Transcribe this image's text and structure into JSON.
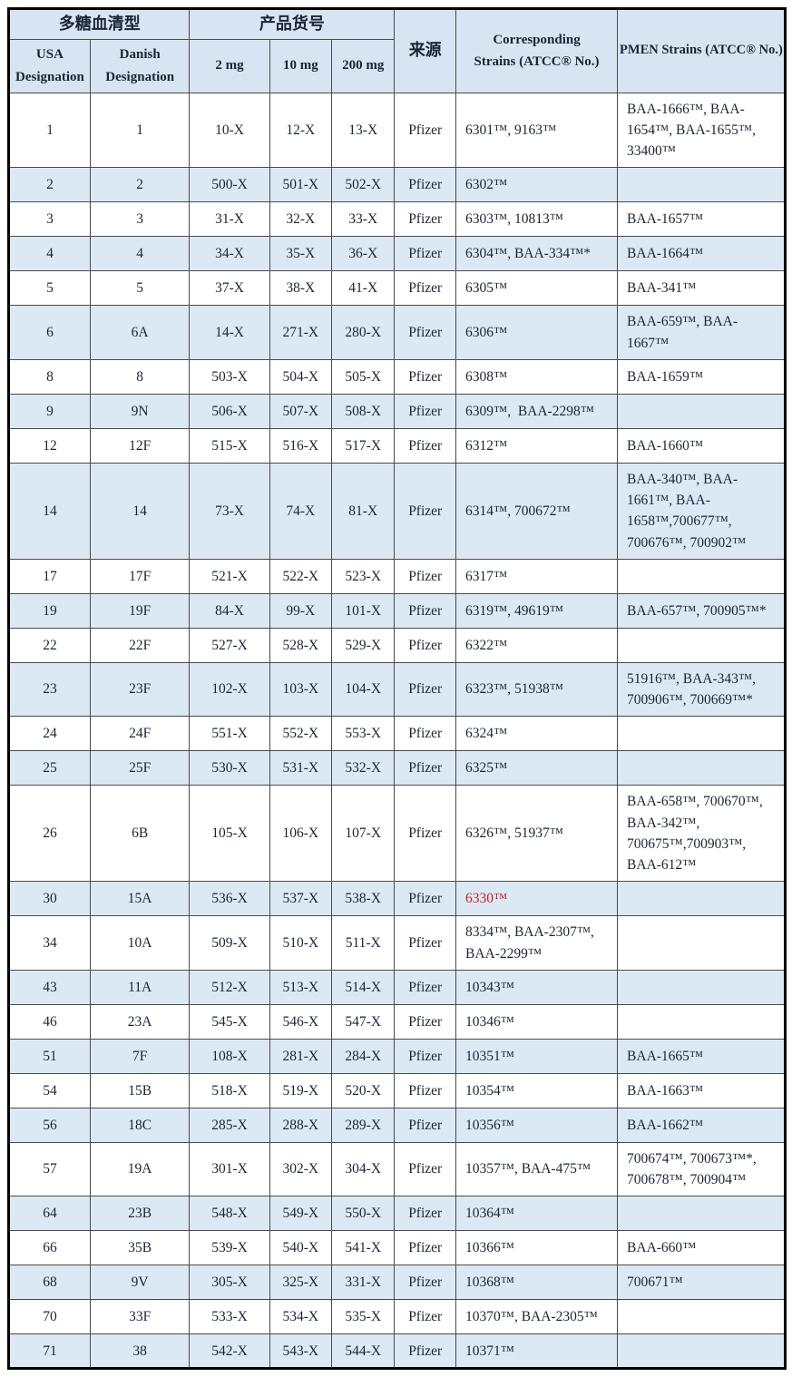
{
  "colors": {
    "header_bg": "#d7e5f2",
    "row_alt_bg": "#dbe9f4",
    "text": "#1b2438",
    "highlight_red": "#cc2222",
    "inner_border": "#4a4a4a",
    "outer_border": "#000000"
  },
  "table": {
    "header": {
      "group_serotype": "多糖血清型",
      "group_catalog": "产品货号",
      "col_source": "来源",
      "col_corresponding": "Corresponding\nStrains (ATCC® No.)",
      "col_pmen": "PMEN Strains (ATCC® No.)",
      "col_usa": "USA\nDesignation",
      "col_danish": "Danish\nDesignation",
      "col_2mg": "2 mg",
      "col_10mg": "10 mg",
      "col_200mg": "200 mg"
    },
    "rows": [
      {
        "usa": "1",
        "danish": "1",
        "mg2": "10-X",
        "mg10": "12-X",
        "mg200": "13-X",
        "source": "Pfizer",
        "corresponding": "6301™, 9163™",
        "pmen": "BAA-1666™, BAA-1654™, BAA-1655™,   33400™"
      },
      {
        "usa": "2",
        "danish": "2",
        "mg2": "500-X",
        "mg10": "501-X",
        "mg200": "502-X",
        "source": "Pfizer",
        "corresponding": "6302™",
        "pmen": ""
      },
      {
        "usa": "3",
        "danish": "3",
        "mg2": "31-X",
        "mg10": "32-X",
        "mg200": "33-X",
        "source": "Pfizer",
        "corresponding": "6303™, 10813™",
        "pmen": "BAA-1657™"
      },
      {
        "usa": "4",
        "danish": "4",
        "mg2": "34-X",
        "mg10": "35-X",
        "mg200": "36-X",
        "source": "Pfizer",
        "corresponding": "6304™, BAA-334™*",
        "pmen": "BAA-1664™"
      },
      {
        "usa": "5",
        "danish": "5",
        "mg2": "37-X",
        "mg10": "38-X",
        "mg200": "41-X",
        "source": "Pfizer",
        "corresponding": "6305™",
        "pmen": "BAA-341™"
      },
      {
        "usa": "6",
        "danish": "6A",
        "mg2": "14-X",
        "mg10": "271-X",
        "mg200": "280-X",
        "source": "Pfizer",
        "corresponding": "6306™",
        "pmen": "BAA-659™, BAA-1667™"
      },
      {
        "usa": "8",
        "danish": "8",
        "mg2": "503-X",
        "mg10": "504-X",
        "mg200": "505-X",
        "source": "Pfizer",
        "corresponding": "6308™",
        "pmen": "BAA-1659™"
      },
      {
        "usa": "9",
        "danish": "9N",
        "mg2": "506-X",
        "mg10": "507-X",
        "mg200": "508-X",
        "source": "Pfizer",
        "corresponding": "6309™,  BAA-2298™",
        "pmen": ""
      },
      {
        "usa": "12",
        "danish": "12F",
        "mg2": "515-X",
        "mg10": "516-X",
        "mg200": "517-X",
        "source": "Pfizer",
        "corresponding": "6312™",
        "pmen": "BAA-1660™"
      },
      {
        "usa": "14",
        "danish": "14",
        "mg2": "73-X",
        "mg10": "74-X",
        "mg200": "81-X",
        "source": "Pfizer",
        "corresponding": "6314™, 700672™",
        "pmen": "BAA-340™, BAA-1661™, BAA-1658™,700677™, 700676™, 700902™"
      },
      {
        "usa": "17",
        "danish": "17F",
        "mg2": "521-X",
        "mg10": "522-X",
        "mg200": "523-X",
        "source": "Pfizer",
        "corresponding": "6317™",
        "pmen": ""
      },
      {
        "usa": "19",
        "danish": "19F",
        "mg2": "84-X",
        "mg10": "99-X",
        "mg200": "101-X",
        "source": "Pfizer",
        "corresponding": "6319™, 49619™",
        "pmen": "BAA-657™, 700905™*"
      },
      {
        "usa": "22",
        "danish": "22F",
        "mg2": "527-X",
        "mg10": "528-X",
        "mg200": "529-X",
        "source": "Pfizer",
        "corresponding": "6322™",
        "pmen": ""
      },
      {
        "usa": "23",
        "danish": "23F",
        "mg2": "102-X",
        "mg10": "103-X",
        "mg200": "104-X",
        "source": "Pfizer",
        "corresponding": "6323™, 51938™",
        "pmen": "51916™, BAA-343™, 700906™, 700669™*"
      },
      {
        "usa": "24",
        "danish": "24F",
        "mg2": "551-X",
        "mg10": "552-X",
        "mg200": "553-X",
        "source": "Pfizer",
        "corresponding": "6324™",
        "pmen": ""
      },
      {
        "usa": "25",
        "danish": "25F",
        "mg2": "530-X",
        "mg10": "531-X",
        "mg200": "532-X",
        "source": "Pfizer",
        "corresponding": "6325™",
        "pmen": ""
      },
      {
        "usa": "26",
        "danish": "6B",
        "mg2": "105-X",
        "mg10": "106-X",
        "mg200": "107-X",
        "source": "Pfizer",
        "corresponding": "6326™, 51937™",
        "pmen": "BAA-658™, 700670™, BAA-342™, 700675™,700903™, BAA-612™"
      },
      {
        "usa": "30",
        "danish": "15A",
        "mg2": "536-X",
        "mg10": "537-X",
        "mg200": "538-X",
        "source": "Pfizer",
        "corresponding": "6330™",
        "corresponding_red": true,
        "pmen": ""
      },
      {
        "usa": "34",
        "danish": "10A",
        "mg2": "509-X",
        "mg10": "510-X",
        "mg200": "511-X",
        "source": "Pfizer",
        "corresponding": "8334™, BAA-2307™, BAA-2299™",
        "pmen": ""
      },
      {
        "usa": "43",
        "danish": "11A",
        "mg2": "512-X",
        "mg10": "513-X",
        "mg200": "514-X",
        "source": "Pfizer",
        "corresponding": "10343™",
        "pmen": ""
      },
      {
        "usa": "46",
        "danish": "23A",
        "mg2": "545-X",
        "mg10": "546-X",
        "mg200": "547-X",
        "source": "Pfizer",
        "corresponding": "10346™",
        "pmen": ""
      },
      {
        "usa": "51",
        "danish": "7F",
        "mg2": "108-X",
        "mg10": "281-X",
        "mg200": "284-X",
        "source": "Pfizer",
        "corresponding": "10351™",
        "pmen": "BAA-1665™"
      },
      {
        "usa": "54",
        "danish": "15B",
        "mg2": "518-X",
        "mg10": "519-X",
        "mg200": "520-X",
        "source": "Pfizer",
        "corresponding": "10354™",
        "pmen": "BAA-1663™"
      },
      {
        "usa": "56",
        "danish": "18C",
        "mg2": "285-X",
        "mg10": "288-X",
        "mg200": "289-X",
        "source": "Pfizer",
        "corresponding": "10356™",
        "pmen": "BAA-1662™"
      },
      {
        "usa": "57",
        "danish": "19A",
        "mg2": "301-X",
        "mg10": "302-X",
        "mg200": "304-X",
        "source": "Pfizer",
        "corresponding": "10357™, BAA-475™",
        "pmen": "700674™, 700673™*, 700678™, 700904™"
      },
      {
        "usa": "64",
        "danish": "23B",
        "mg2": "548-X",
        "mg10": "549-X",
        "mg200": "550-X",
        "source": "Pfizer",
        "corresponding": "10364™",
        "pmen": ""
      },
      {
        "usa": "66",
        "danish": "35B",
        "mg2": "539-X",
        "mg10": "540-X",
        "mg200": "541-X",
        "source": "Pfizer",
        "corresponding": "10366™",
        "pmen": "BAA-660™"
      },
      {
        "usa": "68",
        "danish": "9V",
        "mg2": "305-X",
        "mg10": "325-X",
        "mg200": "331-X",
        "source": "Pfizer",
        "corresponding": "10368™",
        "pmen": "700671™"
      },
      {
        "usa": "70",
        "danish": "33F",
        "mg2": "533-X",
        "mg10": "534-X",
        "mg200": "535-X",
        "source": "Pfizer",
        "corresponding": "10370™, BAA-2305™",
        "pmen": ""
      },
      {
        "usa": "71",
        "danish": "38",
        "mg2": "542-X",
        "mg10": "543-X",
        "mg200": "544-X",
        "source": "Pfizer",
        "corresponding": "10371™",
        "pmen": ""
      }
    ]
  }
}
